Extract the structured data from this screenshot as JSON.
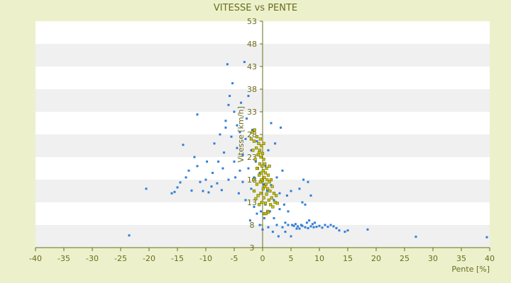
{
  "chart_data": {
    "type": "scatter",
    "title": "VITESSE vs PENTE",
    "xlabel": "Pente [%]",
    "ylabel": "Vitesse [km/h]",
    "xlim": [
      -40,
      40
    ],
    "ylim": [
      3,
      53
    ],
    "x_ticks": [
      -40,
      -35,
      -30,
      -25,
      -20,
      -15,
      -10,
      -5,
      0,
      5,
      10,
      15,
      20,
      25,
      30,
      35,
      40
    ],
    "y_ticks": [
      3,
      8,
      13,
      18,
      23,
      28,
      33,
      38,
      43,
      48,
      53
    ],
    "grid": "horizontal bands",
    "legend": "none",
    "colors": {
      "background": "#ecf1cb",
      "plot_band_light": "#ffffff",
      "plot_band_dark": "#f0f0f0",
      "axis": "#6b6b1e",
      "series_1": "#2f7ed8",
      "series_2": "#c6c400"
    },
    "series": [
      {
        "points": [
          [
            -23.5,
            5.7
          ],
          [
            -20.5,
            16.0
          ],
          [
            -16.0,
            15.0
          ],
          [
            -15.5,
            15.3
          ],
          [
            -15.0,
            16.3
          ],
          [
            -14.5,
            17.4
          ],
          [
            -14.0,
            25.7
          ],
          [
            -13.5,
            18.5
          ],
          [
            -13.0,
            20.0
          ],
          [
            -12.5,
            15.6
          ],
          [
            -12.0,
            23.0
          ],
          [
            -11.5,
            21.0
          ],
          [
            -11.5,
            32.4
          ],
          [
            -11.0,
            17.5
          ],
          [
            -10.5,
            15.5
          ],
          [
            -10.0,
            18.0
          ],
          [
            -9.8,
            22.0
          ],
          [
            -9.5,
            15.2
          ],
          [
            -9.0,
            16.5
          ],
          [
            -8.8,
            19.5
          ],
          [
            -8.5,
            26.0
          ],
          [
            -8.0,
            17.2
          ],
          [
            -7.8,
            22.0
          ],
          [
            -7.5,
            28.0
          ],
          [
            -7.2,
            15.7
          ],
          [
            -7.0,
            20.5
          ],
          [
            -6.8,
            24.0
          ],
          [
            -6.5,
            29.5
          ],
          [
            -6.5,
            31.0
          ],
          [
            -6.2,
            43.5
          ],
          [
            -6.0,
            18.0
          ],
          [
            -6.0,
            34.5
          ],
          [
            -5.8,
            36.5
          ],
          [
            -5.5,
            27.5
          ],
          [
            -5.3,
            39.3
          ],
          [
            -5.0,
            22.0
          ],
          [
            -5.0,
            33.0
          ],
          [
            -4.8,
            18.5
          ],
          [
            -4.5,
            25.0
          ],
          [
            -4.5,
            30.0
          ],
          [
            -4.2,
            15.0
          ],
          [
            -4.0,
            20.0
          ],
          [
            -4.0,
            28.5
          ],
          [
            -3.8,
            35.0
          ],
          [
            -3.5,
            17.5
          ],
          [
            -3.5,
            23.5
          ],
          [
            -3.2,
            44.0
          ],
          [
            -3.0,
            13.5
          ],
          [
            -3.0,
            27.0
          ],
          [
            -2.8,
            31.5
          ],
          [
            -2.5,
            20.5
          ],
          [
            -2.5,
            36.5
          ],
          [
            -2.2,
            9.0
          ],
          [
            -2.0,
            16.0
          ],
          [
            -2.0,
            24.5
          ],
          [
            -1.8,
            29.0
          ],
          [
            -1.5,
            12.0
          ],
          [
            -1.5,
            18.5
          ],
          [
            -1.2,
            22.0
          ],
          [
            -1.0,
            10.5
          ],
          [
            -1.0,
            26.5
          ],
          [
            -0.8,
            14.5
          ],
          [
            -0.5,
            8.0
          ],
          [
            -0.5,
            19.5
          ],
          [
            -0.3,
            11.0
          ],
          [
            0.0,
            7.0
          ],
          [
            0.2,
            17.0
          ],
          [
            0.3,
            9.5
          ],
          [
            0.5,
            12.5
          ],
          [
            0.5,
            21.0
          ],
          [
            0.8,
            15.5
          ],
          [
            1.0,
            7.5
          ],
          [
            1.0,
            24.5
          ],
          [
            1.3,
            11.0
          ],
          [
            1.5,
            16.8
          ],
          [
            1.5,
            30.5
          ],
          [
            1.8,
            6.5
          ],
          [
            2.0,
            9.5
          ],
          [
            2.0,
            13.5
          ],
          [
            2.2,
            26.0
          ],
          [
            2.5,
            8.0
          ],
          [
            2.5,
            18.5
          ],
          [
            2.8,
            5.5
          ],
          [
            3.0,
            11.5
          ],
          [
            3.0,
            15.0
          ],
          [
            3.2,
            29.5
          ],
          [
            3.5,
            7.5
          ],
          [
            3.5,
            20.0
          ],
          [
            3.8,
            12.5
          ],
          [
            4.0,
            8.5
          ],
          [
            4.0,
            6.5
          ],
          [
            4.3,
            14.5
          ],
          [
            4.5,
            8.0
          ],
          [
            4.5,
            11.0
          ],
          [
            5.0,
            5.5
          ],
          [
            5.0,
            15.5
          ],
          [
            5.2,
            8.0
          ],
          [
            5.5,
            7.8
          ],
          [
            5.8,
            8.2
          ],
          [
            6.0,
            7.2
          ],
          [
            6.2,
            7.7
          ],
          [
            6.5,
            7.2
          ],
          [
            6.5,
            16.0
          ],
          [
            6.8,
            8.0
          ],
          [
            7.0,
            7.8
          ],
          [
            7.0,
            13.0
          ],
          [
            7.2,
            18.0
          ],
          [
            7.5,
            7.5
          ],
          [
            7.5,
            12.5
          ],
          [
            7.8,
            8.5
          ],
          [
            8.0,
            7.3
          ],
          [
            8.0,
            17.5
          ],
          [
            8.2,
            9.0
          ],
          [
            8.5,
            7.7
          ],
          [
            8.5,
            14.5
          ],
          [
            8.8,
            8.2
          ],
          [
            9.0,
            7.5
          ],
          [
            9.2,
            8.5
          ],
          [
            9.5,
            7.6
          ],
          [
            10.0,
            7.8
          ],
          [
            10.5,
            7.4
          ],
          [
            11.0,
            8.0
          ],
          [
            11.5,
            7.6
          ],
          [
            12.0,
            8.0
          ],
          [
            12.5,
            7.7
          ],
          [
            13.0,
            7.3
          ],
          [
            13.5,
            6.8
          ],
          [
            14.5,
            6.5
          ],
          [
            15.0,
            6.8
          ],
          [
            18.5,
            7.0
          ],
          [
            27.0,
            5.4
          ],
          [
            39.5,
            5.3
          ]
        ]
      },
      {
        "points": [
          [
            -2.0,
            27.0
          ],
          [
            -1.8,
            28.5
          ],
          [
            -1.7,
            24.5
          ],
          [
            -1.5,
            26.5
          ],
          [
            -1.5,
            15.5
          ],
          [
            -1.4,
            29.0
          ],
          [
            -1.3,
            22.5
          ],
          [
            -1.2,
            13.8
          ],
          [
            -1.1,
            25.0
          ],
          [
            -1.0,
            27.5
          ],
          [
            -1.0,
            17.0
          ],
          [
            -0.9,
            20.5
          ],
          [
            -0.8,
            23.5
          ],
          [
            -0.8,
            14.5
          ],
          [
            -0.7,
            26.0
          ],
          [
            -0.6,
            19.0
          ],
          [
            -0.6,
            12.5
          ],
          [
            -0.5,
            24.5
          ],
          [
            -0.5,
            21.5
          ],
          [
            -0.4,
            17.5
          ],
          [
            -0.4,
            27.0
          ],
          [
            -0.3,
            15.0
          ],
          [
            -0.3,
            23.0
          ],
          [
            -0.2,
            19.5
          ],
          [
            -0.2,
            25.5
          ],
          [
            -0.1,
            13.0
          ],
          [
            -0.1,
            21.0
          ],
          [
            0.0,
            17.8
          ],
          [
            0.0,
            23.8
          ],
          [
            0.1,
            16.0
          ],
          [
            0.1,
            20.0
          ],
          [
            0.2,
            22.5
          ],
          [
            0.2,
            14.0
          ],
          [
            0.3,
            18.5
          ],
          [
            0.3,
            10.5
          ],
          [
            0.4,
            21.5
          ],
          [
            0.4,
            16.5
          ],
          [
            0.5,
            19.5
          ],
          [
            0.5,
            12.8
          ],
          [
            0.6,
            17.0
          ],
          [
            0.7,
            20.5
          ],
          [
            0.7,
            14.8
          ],
          [
            0.8,
            18.0
          ],
          [
            0.9,
            11.0
          ],
          [
            0.9,
            16.0
          ],
          [
            1.0,
            19.0
          ],
          [
            1.1,
            13.5
          ],
          [
            1.2,
            17.5
          ],
          [
            1.3,
            15.5
          ],
          [
            1.4,
            12.5
          ],
          [
            1.5,
            18.0
          ],
          [
            1.6,
            14.0
          ],
          [
            1.7,
            16.5
          ],
          [
            1.8,
            12.0
          ],
          [
            2.0,
            15.0
          ],
          [
            2.2,
            13.0
          ],
          [
            2.4,
            14.5
          ],
          [
            2.6,
            12.8
          ],
          [
            -0.6,
            24.0
          ],
          [
            -0.2,
            18.0
          ],
          [
            0.6,
            10.5
          ],
          [
            1.0,
            10.8
          ],
          [
            -1.0,
            20.5
          ],
          [
            0.2,
            26.0
          ],
          [
            -1.6,
            18.0
          ],
          [
            1.2,
            21.0
          ]
        ]
      }
    ]
  }
}
